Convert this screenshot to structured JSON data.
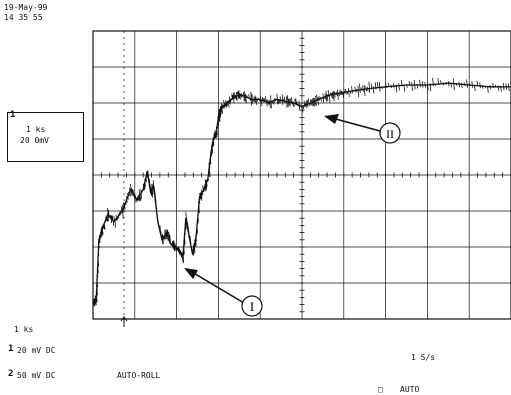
{
  "header": {
    "date": "19-May-99",
    "time": "14 35 55"
  },
  "channel_box": {
    "marker": "1",
    "timebase": "1 ks",
    "volts": "20 0mV"
  },
  "status": {
    "timebase": "1 ks",
    "ch1_num": "1",
    "ch1_setting": "20 mV  DC",
    "ch2_num": "2",
    "ch2_setting": "50 mV  DC",
    "mode": "AUTO-ROLL",
    "sample_rate": "1 S/s",
    "trigger_symbol": "□",
    "trigger_mode": "AUTO"
  },
  "annotations": {
    "label_1": "I",
    "label_2": "II"
  },
  "chart_data": {
    "type": "line",
    "title": "",
    "xlabel": "",
    "ylabel": "",
    "xlim": [
      0,
      10
    ],
    "ylim": [
      -4,
      4
    ],
    "grid": true,
    "series": [
      {
        "x": [
          0.0,
          0.08,
          0.14,
          0.22,
          0.35,
          0.5,
          0.7,
          0.9,
          1.05,
          1.2,
          1.3,
          1.38,
          1.45,
          1.55,
          1.65,
          1.75,
          1.85,
          1.95,
          2.05,
          2.15,
          2.22,
          2.3,
          2.38,
          2.46,
          2.55,
          2.65,
          2.75,
          2.82,
          2.88,
          2.95,
          3.0,
          3.05,
          3.1,
          3.2,
          3.3,
          3.45,
          3.6,
          3.8,
          4.0,
          4.2,
          4.4,
          4.6,
          4.8,
          5.0,
          5.2,
          5.4,
          5.6,
          5.8,
          6.0,
          6.3,
          6.6,
          7.0,
          7.5,
          8.0,
          8.5,
          9.0,
          9.5,
          10.0
        ],
        "y": [
          -3.6,
          -3.4,
          -1.8,
          -1.5,
          -1.1,
          -1.3,
          -1.0,
          -0.4,
          -0.7,
          -0.4,
          0.1,
          -0.5,
          -0.3,
          -1.3,
          -1.8,
          -1.6,
          -1.9,
          -2.0,
          -2.1,
          -2.3,
          -1.2,
          -1.7,
          -2.2,
          -1.8,
          -0.6,
          -0.4,
          -0.1,
          0.6,
          1.0,
          1.2,
          1.6,
          1.8,
          1.9,
          2.0,
          2.1,
          2.2,
          2.2,
          2.1,
          2.1,
          2.0,
          2.1,
          2.05,
          2.0,
          1.9,
          2.0,
          2.1,
          2.2,
          2.25,
          2.3,
          2.35,
          2.4,
          2.45,
          2.5,
          2.5,
          2.55,
          2.5,
          2.45,
          2.45
        ]
      }
    ]
  }
}
